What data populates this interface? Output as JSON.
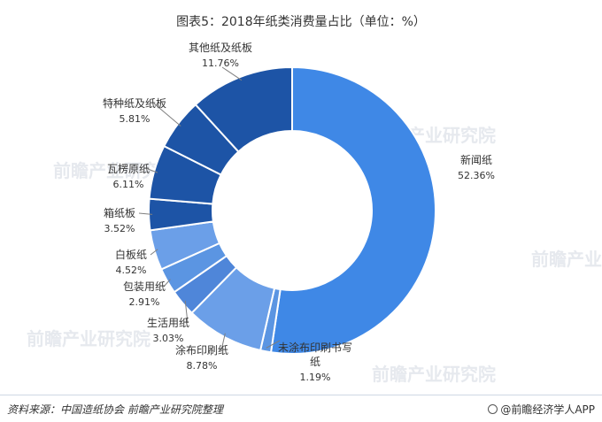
{
  "footer": {
    "source": "资料来源：中国造纸协会 前瞻产业研究院整理",
    "brand": "@前瞻经济学人APP"
  },
  "watermark": {
    "text": "前瞻产业研究院"
  },
  "colors": {
    "darkBlue": "#1d54a6",
    "mediumBlue": "#4f86d9",
    "lightBlue": "#6b9fe8",
    "brightBlue": "#3f88e6",
    "leaderLine": "#7f7f7f"
  },
  "chart_data": {
    "type": "pie",
    "subtype": "donut",
    "title": "图表5：2018年纸类消费量占比（单位：%）",
    "series": [
      {
        "name": "新闻纸",
        "value": 52.36,
        "label": "52.36%",
        "color": "#3f88e6"
      },
      {
        "name": "未涂布印刷书写纸",
        "value": 1.19,
        "label": "1.19%",
        "color": "#5b95e2"
      },
      {
        "name": "涂布印刷纸",
        "value": 8.78,
        "label": "8.78%",
        "color": "#6b9fe8"
      },
      {
        "name": "生活用纸",
        "value": 3.03,
        "label": "3.03%",
        "color": "#4f86d9"
      },
      {
        "name": "包装用纸",
        "value": 2.91,
        "label": "2.91%",
        "color": "#5b95e2"
      },
      {
        "name": "白板纸",
        "value": 4.52,
        "label": "4.52%",
        "color": "#6b9fe8"
      },
      {
        "name": "箱纸板",
        "value": 3.52,
        "label": "3.52%",
        "color": "#1d54a6"
      },
      {
        "name": "瓦楞原纸",
        "value": 6.11,
        "label": "6.11%",
        "color": "#1d54a6"
      },
      {
        "name": "特种纸及纸板",
        "value": 5.81,
        "label": "5.81%",
        "color": "#1d54a6"
      },
      {
        "name": "其他纸及纸板",
        "value": 11.76,
        "label": "11.76%",
        "color": "#1d54a6"
      }
    ]
  }
}
